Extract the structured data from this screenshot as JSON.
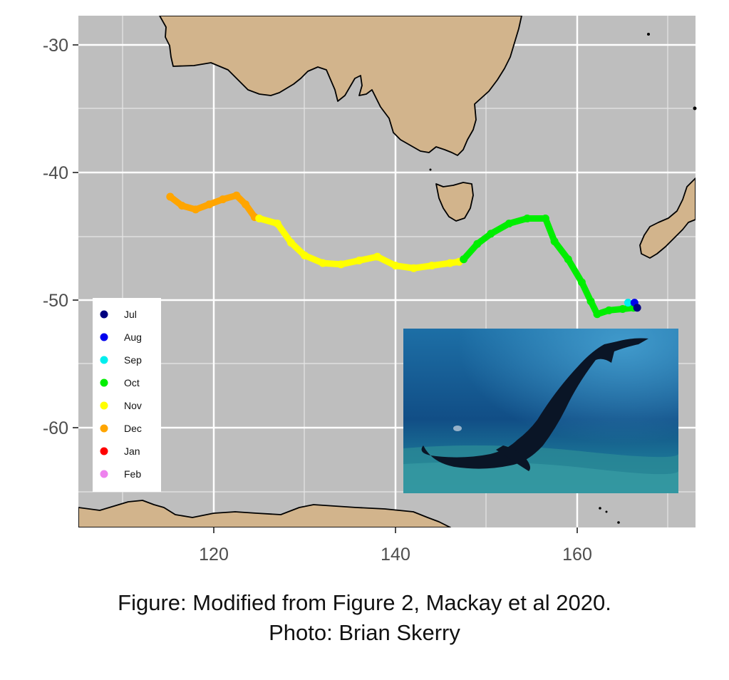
{
  "map": {
    "x_ticks": [
      "120",
      "140",
      "160"
    ],
    "y_ticks": [
      "-30",
      "-40",
      "-50",
      "-60"
    ],
    "colors": {
      "panel": "#bebebe",
      "grid_major": "#ffffff",
      "land": "#d2b48c",
      "coast": "#000000"
    }
  },
  "legend": {
    "items": [
      {
        "label": "Jul",
        "color": "#000080"
      },
      {
        "label": "Aug",
        "color": "#0000ee"
      },
      {
        "label": "Sep",
        "color": "#00eeee"
      },
      {
        "label": "Oct",
        "color": "#00ee00"
      },
      {
        "label": "Nov",
        "color": "#ffff00"
      },
      {
        "label": "Dec",
        "color": "#ffa500"
      },
      {
        "label": "Jan",
        "color": "#ff0000"
      },
      {
        "label": "Feb",
        "color": "#ee82ee"
      }
    ]
  },
  "chart_data": {
    "type": "scatter",
    "x_axis": {
      "range": [
        106,
        173
      ],
      "ticks": [
        120,
        140,
        160
      ]
    },
    "y_axis": {
      "range": [
        -67,
        -28
      ],
      "ticks": [
        -30,
        -40,
        -50,
        -60
      ]
    },
    "grid": true,
    "legend_placement": "bottom-left",
    "series": [
      {
        "name": "Dec",
        "color": "#ffa500",
        "x": [
          115.2,
          116.5,
          118.0,
          119.5,
          121.0,
          122.5,
          123.5,
          124.5
        ],
        "y": [
          -41.9,
          -42.6,
          -42.9,
          -42.5,
          -42.1,
          -41.8,
          -42.5,
          -43.5
        ]
      },
      {
        "name": "Nov",
        "color": "#ffff00",
        "x": [
          125.0,
          127.0,
          128.5,
          130.0,
          132.0,
          134.0,
          136.0,
          138.0,
          140.0,
          142.0,
          144.0,
          146.0,
          147.0
        ],
        "y": [
          -43.6,
          -44.0,
          -45.5,
          -46.5,
          -47.1,
          -47.2,
          -46.9,
          -46.6,
          -47.3,
          -47.5,
          -47.3,
          -47.1,
          -47.0
        ]
      },
      {
        "name": "Oct",
        "color": "#00ee00",
        "x": [
          147.5,
          149.0,
          150.5,
          152.5,
          154.5,
          156.5,
          157.5,
          159.0,
          160.5,
          161.5,
          162.2,
          163.5,
          165.0,
          166.2
        ],
        "y": [
          -46.8,
          -45.6,
          -44.8,
          -44.0,
          -43.6,
          -43.6,
          -45.4,
          -46.8,
          -48.6,
          -50.1,
          -51.1,
          -50.8,
          -50.7,
          -50.6
        ]
      },
      {
        "name": "Sep",
        "color": "#00eeee",
        "x": [
          165.6
        ],
        "y": [
          -50.2
        ]
      },
      {
        "name": "Aug",
        "color": "#0000ee",
        "x": [
          166.3
        ],
        "y": [
          -50.2
        ]
      },
      {
        "name": "Jul",
        "color": "#000080",
        "x": [
          166.6
        ],
        "y": [
          -50.6
        ]
      }
    ]
  },
  "caption": {
    "line1": "Figure: Modified from Figure 2, Mackay et al 2020.",
    "line2": "Photo: Brian Skerry"
  }
}
